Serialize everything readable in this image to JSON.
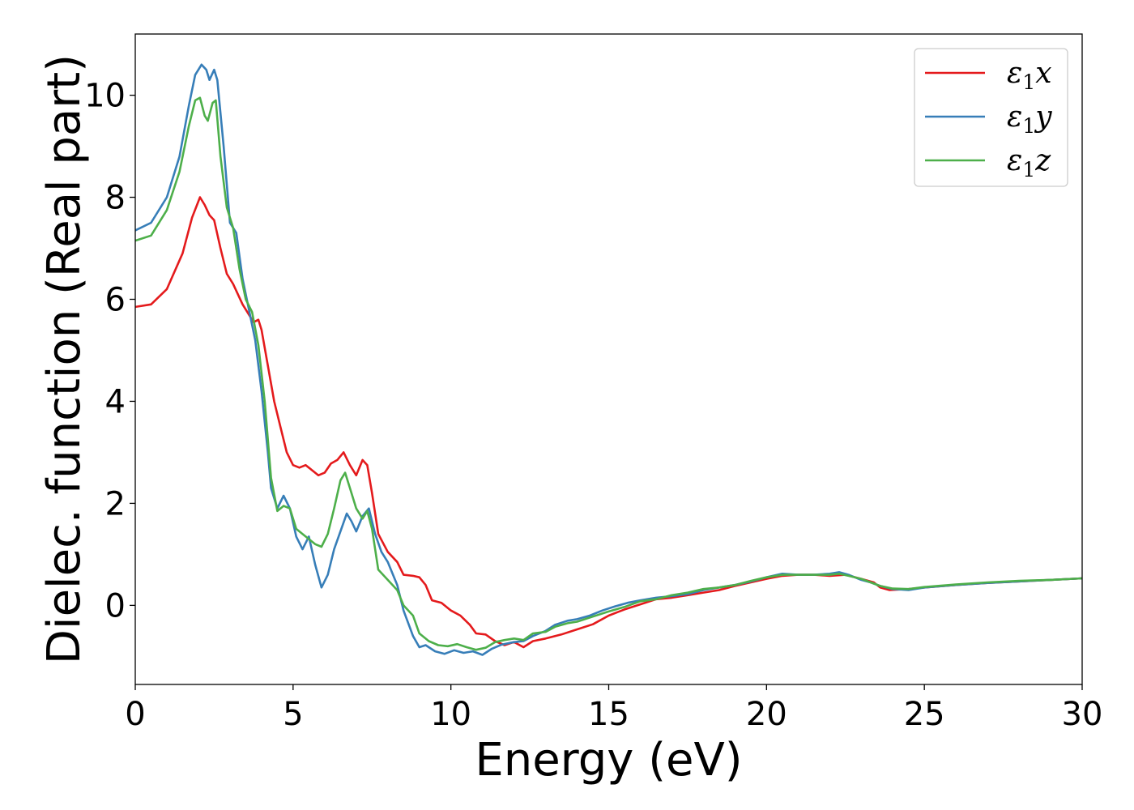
{
  "chart_data": {
    "type": "line",
    "title": "",
    "xlabel": "Energy (eV)",
    "ylabel": "Dielec. function (Real part)",
    "xlim": [
      0,
      30
    ],
    "ylim": [
      -1.55,
      11.2
    ],
    "xticks": [
      0,
      5,
      10,
      15,
      20,
      25,
      30
    ],
    "yticks": [
      0,
      2,
      4,
      6,
      8,
      10
    ],
    "grid": false,
    "legend_position": "top-right",
    "series": [
      {
        "name": "ε1x",
        "label_main": "ε",
        "label_sub": "1",
        "label_suffix": "x",
        "color": "#e41a1c",
        "points": [
          [
            0,
            5.85
          ],
          [
            0.5,
            5.9
          ],
          [
            1.0,
            6.2
          ],
          [
            1.5,
            6.9
          ],
          [
            1.8,
            7.6
          ],
          [
            2.05,
            8.0
          ],
          [
            2.2,
            7.85
          ],
          [
            2.35,
            7.65
          ],
          [
            2.5,
            7.55
          ],
          [
            2.7,
            7.0
          ],
          [
            2.9,
            6.5
          ],
          [
            3.1,
            6.3
          ],
          [
            3.4,
            5.9
          ],
          [
            3.6,
            5.7
          ],
          [
            3.75,
            5.55
          ],
          [
            3.9,
            5.6
          ],
          [
            4.0,
            5.4
          ],
          [
            4.2,
            4.7
          ],
          [
            4.4,
            4.0
          ],
          [
            4.6,
            3.5
          ],
          [
            4.8,
            3.0
          ],
          [
            5.0,
            2.75
          ],
          [
            5.2,
            2.7
          ],
          [
            5.4,
            2.75
          ],
          [
            5.6,
            2.65
          ],
          [
            5.8,
            2.55
          ],
          [
            6.0,
            2.6
          ],
          [
            6.2,
            2.78
          ],
          [
            6.4,
            2.85
          ],
          [
            6.6,
            3.0
          ],
          [
            6.8,
            2.75
          ],
          [
            7.0,
            2.55
          ],
          [
            7.2,
            2.85
          ],
          [
            7.35,
            2.75
          ],
          [
            7.5,
            2.2
          ],
          [
            7.7,
            1.4
          ],
          [
            8.0,
            1.05
          ],
          [
            8.3,
            0.85
          ],
          [
            8.5,
            0.6
          ],
          [
            8.8,
            0.58
          ],
          [
            9.0,
            0.55
          ],
          [
            9.2,
            0.4
          ],
          [
            9.4,
            0.1
          ],
          [
            9.7,
            0.05
          ],
          [
            10.0,
            -0.1
          ],
          [
            10.3,
            -0.2
          ],
          [
            10.6,
            -0.38
          ],
          [
            10.8,
            -0.55
          ],
          [
            11.1,
            -0.57
          ],
          [
            11.4,
            -0.7
          ],
          [
            11.7,
            -0.78
          ],
          [
            12.0,
            -0.72
          ],
          [
            12.3,
            -0.82
          ],
          [
            12.6,
            -0.7
          ],
          [
            13.0,
            -0.65
          ],
          [
            13.5,
            -0.57
          ],
          [
            14.0,
            -0.47
          ],
          [
            14.5,
            -0.37
          ],
          [
            15.0,
            -0.2
          ],
          [
            15.5,
            -0.08
          ],
          [
            16.0,
            0.02
          ],
          [
            16.5,
            0.12
          ],
          [
            17.0,
            0.15
          ],
          [
            17.5,
            0.2
          ],
          [
            18.0,
            0.25
          ],
          [
            18.5,
            0.3
          ],
          [
            19.0,
            0.38
          ],
          [
            19.5,
            0.45
          ],
          [
            20.0,
            0.52
          ],
          [
            20.5,
            0.58
          ],
          [
            21.0,
            0.6
          ],
          [
            21.5,
            0.6
          ],
          [
            22.0,
            0.58
          ],
          [
            22.5,
            0.6
          ],
          [
            23.0,
            0.52
          ],
          [
            23.4,
            0.45
          ],
          [
            23.6,
            0.35
          ],
          [
            23.9,
            0.3
          ],
          [
            24.5,
            0.32
          ],
          [
            25,
            0.35
          ],
          [
            26,
            0.4
          ],
          [
            27,
            0.44
          ],
          [
            28,
            0.47
          ],
          [
            29,
            0.5
          ],
          [
            30,
            0.53
          ]
        ]
      },
      {
        "name": "ε1y",
        "label_main": "ε",
        "label_sub": "1",
        "label_suffix": "y",
        "color": "#377eb8",
        "points": [
          [
            0,
            7.35
          ],
          [
            0.5,
            7.5
          ],
          [
            1.0,
            8.0
          ],
          [
            1.4,
            8.8
          ],
          [
            1.7,
            9.8
          ],
          [
            1.9,
            10.4
          ],
          [
            2.1,
            10.6
          ],
          [
            2.25,
            10.5
          ],
          [
            2.35,
            10.3
          ],
          [
            2.5,
            10.5
          ],
          [
            2.6,
            10.3
          ],
          [
            2.8,
            9.0
          ],
          [
            3.0,
            7.5
          ],
          [
            3.2,
            7.3
          ],
          [
            3.4,
            6.4
          ],
          [
            3.6,
            5.8
          ],
          [
            3.8,
            5.2
          ],
          [
            4.0,
            4.2
          ],
          [
            4.2,
            3.0
          ],
          [
            4.3,
            2.3
          ],
          [
            4.5,
            1.9
          ],
          [
            4.7,
            2.15
          ],
          [
            4.9,
            1.9
          ],
          [
            5.1,
            1.35
          ],
          [
            5.3,
            1.1
          ],
          [
            5.5,
            1.35
          ],
          [
            5.7,
            0.8
          ],
          [
            5.9,
            0.35
          ],
          [
            6.1,
            0.6
          ],
          [
            6.3,
            1.1
          ],
          [
            6.5,
            1.45
          ],
          [
            6.7,
            1.8
          ],
          [
            6.85,
            1.65
          ],
          [
            7.0,
            1.45
          ],
          [
            7.2,
            1.75
          ],
          [
            7.4,
            1.9
          ],
          [
            7.6,
            1.4
          ],
          [
            7.8,
            1.05
          ],
          [
            8.0,
            0.85
          ],
          [
            8.3,
            0.4
          ],
          [
            8.5,
            -0.1
          ],
          [
            8.8,
            -0.6
          ],
          [
            9.0,
            -0.82
          ],
          [
            9.2,
            -0.78
          ],
          [
            9.5,
            -0.9
          ],
          [
            9.8,
            -0.95
          ],
          [
            10.1,
            -0.88
          ],
          [
            10.4,
            -0.93
          ],
          [
            10.7,
            -0.9
          ],
          [
            11.0,
            -0.97
          ],
          [
            11.3,
            -0.85
          ],
          [
            11.6,
            -0.77
          ],
          [
            12.0,
            -0.72
          ],
          [
            12.3,
            -0.7
          ],
          [
            12.6,
            -0.6
          ],
          [
            13.0,
            -0.5
          ],
          [
            13.3,
            -0.38
          ],
          [
            13.7,
            -0.3
          ],
          [
            14.0,
            -0.27
          ],
          [
            14.4,
            -0.2
          ],
          [
            14.8,
            -0.1
          ],
          [
            15.2,
            -0.02
          ],
          [
            15.6,
            0.05
          ],
          [
            16.0,
            0.1
          ],
          [
            16.5,
            0.15
          ],
          [
            17.0,
            0.18
          ],
          [
            17.5,
            0.22
          ],
          [
            18.0,
            0.3
          ],
          [
            18.5,
            0.35
          ],
          [
            19.0,
            0.4
          ],
          [
            19.5,
            0.47
          ],
          [
            20.0,
            0.55
          ],
          [
            20.5,
            0.62
          ],
          [
            21.0,
            0.6
          ],
          [
            21.5,
            0.6
          ],
          [
            22.0,
            0.62
          ],
          [
            22.3,
            0.65
          ],
          [
            22.6,
            0.6
          ],
          [
            23.0,
            0.5
          ],
          [
            23.3,
            0.45
          ],
          [
            23.6,
            0.38
          ],
          [
            24.0,
            0.32
          ],
          [
            24.5,
            0.3
          ],
          [
            25,
            0.35
          ],
          [
            26,
            0.4
          ],
          [
            27,
            0.44
          ],
          [
            28,
            0.47
          ],
          [
            29,
            0.5
          ],
          [
            30,
            0.53
          ]
        ]
      },
      {
        "name": "ε1z",
        "label_main": "ε",
        "label_sub": "1",
        "label_suffix": "z",
        "color": "#4daf4a",
        "points": [
          [
            0,
            7.15
          ],
          [
            0.5,
            7.25
          ],
          [
            1.0,
            7.75
          ],
          [
            1.4,
            8.5
          ],
          [
            1.7,
            9.4
          ],
          [
            1.9,
            9.9
          ],
          [
            2.05,
            9.95
          ],
          [
            2.2,
            9.6
          ],
          [
            2.3,
            9.5
          ],
          [
            2.45,
            9.85
          ],
          [
            2.55,
            9.9
          ],
          [
            2.7,
            8.8
          ],
          [
            2.9,
            7.8
          ],
          [
            3.1,
            7.4
          ],
          [
            3.3,
            6.6
          ],
          [
            3.5,
            6.0
          ],
          [
            3.7,
            5.75
          ],
          [
            3.9,
            5.1
          ],
          [
            4.1,
            4.0
          ],
          [
            4.3,
            2.5
          ],
          [
            4.5,
            1.85
          ],
          [
            4.7,
            1.95
          ],
          [
            4.9,
            1.9
          ],
          [
            5.1,
            1.5
          ],
          [
            5.3,
            1.4
          ],
          [
            5.5,
            1.3
          ],
          [
            5.7,
            1.2
          ],
          [
            5.9,
            1.15
          ],
          [
            6.1,
            1.4
          ],
          [
            6.3,
            1.9
          ],
          [
            6.5,
            2.45
          ],
          [
            6.65,
            2.6
          ],
          [
            6.8,
            2.3
          ],
          [
            7.0,
            1.9
          ],
          [
            7.2,
            1.7
          ],
          [
            7.35,
            1.85
          ],
          [
            7.5,
            1.5
          ],
          [
            7.7,
            0.7
          ],
          [
            8.0,
            0.5
          ],
          [
            8.3,
            0.3
          ],
          [
            8.5,
            0.0
          ],
          [
            8.8,
            -0.2
          ],
          [
            9.0,
            -0.55
          ],
          [
            9.3,
            -0.7
          ],
          [
            9.6,
            -0.78
          ],
          [
            9.9,
            -0.8
          ],
          [
            10.2,
            -0.76
          ],
          [
            10.5,
            -0.82
          ],
          [
            10.8,
            -0.87
          ],
          [
            11.1,
            -0.83
          ],
          [
            11.4,
            -0.72
          ],
          [
            11.7,
            -0.68
          ],
          [
            12.0,
            -0.65
          ],
          [
            12.3,
            -0.68
          ],
          [
            12.6,
            -0.55
          ],
          [
            13.0,
            -0.52
          ],
          [
            13.3,
            -0.42
          ],
          [
            13.7,
            -0.35
          ],
          [
            14.0,
            -0.32
          ],
          [
            14.5,
            -0.22
          ],
          [
            15.0,
            -0.12
          ],
          [
            15.5,
            -0.03
          ],
          [
            16.0,
            0.08
          ],
          [
            16.5,
            0.12
          ],
          [
            17.0,
            0.2
          ],
          [
            17.5,
            0.25
          ],
          [
            18.0,
            0.32
          ],
          [
            18.5,
            0.35
          ],
          [
            19.0,
            0.4
          ],
          [
            19.5,
            0.48
          ],
          [
            20.0,
            0.55
          ],
          [
            20.5,
            0.6
          ],
          [
            21.0,
            0.6
          ],
          [
            21.5,
            0.6
          ],
          [
            22.0,
            0.6
          ],
          [
            22.3,
            0.62
          ],
          [
            22.6,
            0.58
          ],
          [
            23.0,
            0.52
          ],
          [
            23.3,
            0.45
          ],
          [
            23.6,
            0.38
          ],
          [
            24.0,
            0.33
          ],
          [
            24.5,
            0.32
          ],
          [
            25,
            0.36
          ],
          [
            26,
            0.41
          ],
          [
            27,
            0.45
          ],
          [
            28,
            0.48
          ],
          [
            29,
            0.5
          ],
          [
            30,
            0.53
          ]
        ]
      }
    ]
  }
}
